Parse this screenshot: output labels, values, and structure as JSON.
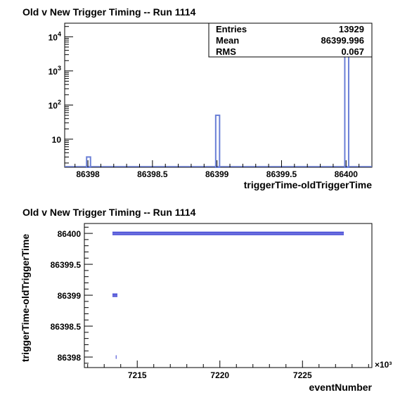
{
  "chart_data": [
    {
      "type": "histogram",
      "title": "Old v New Trigger Timing -- Run 1114",
      "xlabel": "triggerTime-oldTriggerTime",
      "ylabel": "",
      "xlim": [
        86397.82,
        86400.2
      ],
      "ylim": [
        1.5,
        25000
      ],
      "y_scale": "log",
      "x_tick_labels": [
        "86398",
        "86398.5",
        "86399",
        "86399.5",
        "86400"
      ],
      "y_tick_labels": [
        {
          "value": 10,
          "base": "10",
          "exp": ""
        },
        {
          "value": 100,
          "base": "10",
          "exp": "2"
        },
        {
          "value": 1000,
          "base": "10",
          "exp": "3"
        },
        {
          "value": 10000,
          "base": "10",
          "exp": "4"
        }
      ],
      "bins": [
        {
          "x0": 86397.99,
          "x1": 86398.02,
          "count": 3
        },
        {
          "x0": 86398.99,
          "x1": 86399.02,
          "count": 50
        },
        {
          "x0": 86399.99,
          "x1": 86400.02,
          "count": 13876
        }
      ],
      "stats": [
        {
          "label": "Entries",
          "value": "13929"
        },
        {
          "label": "Mean",
          "value": "86399.996"
        },
        {
          "label": "RMS",
          "value": "0.067"
        }
      ],
      "bar_color": "#6a7fd6"
    },
    {
      "type": "scatter",
      "title": "Old v New Trigger Timing -- Run 1114",
      "xlabel": "eventNumber",
      "ylabel": "triggerTime-oldTriggerTime",
      "x_multiplier": "×10³",
      "xlim": [
        7211.8,
        7229.2
      ],
      "ylim": [
        86397.83,
        86400.16
      ],
      "x_tick_labels": [
        "7215",
        "7220",
        "7225"
      ],
      "y_tick_labels": [
        "86398",
        "86398.5",
        "86399",
        "86399.5",
        "86400"
      ],
      "series": [
        {
          "segments": [
            {
              "x_start": 7213.5,
              "x_end": 7227.5,
              "y": 86400
            },
            {
              "x_start": 7213.5,
              "x_end": 7213.8,
              "y": 86399
            },
            {
              "x_start": 7213.7,
              "x_end": 7213.75,
              "y": 86398
            }
          ]
        }
      ],
      "marker_color": "#4a4fd6"
    }
  ]
}
